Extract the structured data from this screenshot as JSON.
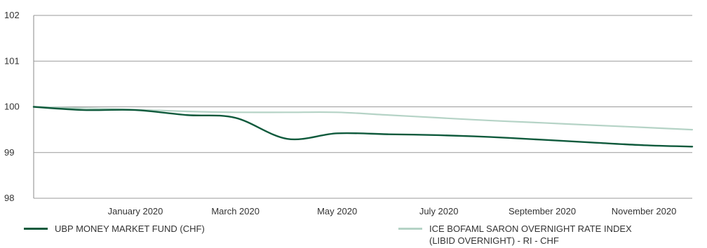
{
  "chart_data": {
    "type": "line",
    "title": "",
    "xlabel": "",
    "ylabel": "",
    "ylim": [
      98,
      102
    ],
    "yticks": [
      "102",
      "101",
      "100",
      "99",
      "98"
    ],
    "xticks": [
      {
        "label": "January 2020",
        "x": "2020-01"
      },
      {
        "label": "March 2020",
        "x": "2020-03"
      },
      {
        "label": "May 2020",
        "x": "2020-05"
      },
      {
        "label": "July 2020",
        "x": "2020-07"
      },
      {
        "label": "September 2020",
        "x": "2020-09"
      },
      {
        "label": "November 2020",
        "x": "2020-11"
      }
    ],
    "grid": "horizontal",
    "legend_position": "bottom",
    "x": [
      "2019-11",
      "2019-12",
      "2020-01",
      "2020-02",
      "2020-03",
      "2020-04",
      "2020-05",
      "2020-06",
      "2020-07",
      "2020-08",
      "2020-09",
      "2020-10",
      "2020-11"
    ],
    "series": [
      {
        "name": "UBP MONEY MARKET FUND (CHF)",
        "color": "#0f5a3c",
        "values": [
          100.0,
          99.93,
          99.93,
          99.82,
          99.76,
          99.3,
          99.42,
          99.4,
          99.38,
          99.34,
          99.28,
          99.22,
          99.16
        ]
      },
      {
        "name": "ICE BOFAML SARON OVERNIGHT RATE INDEX (LIBID OVERNIGHT) - RI - CHF",
        "name_line1": "ICE BOFAML SARON OVERNIGHT RATE INDEX",
        "name_line2": "(LIBID OVERNIGHT) - RI - CHF",
        "color": "#b5d3c6",
        "values": [
          100.0,
          99.97,
          99.94,
          99.9,
          99.88,
          99.88,
          99.88,
          99.82,
          99.76,
          99.7,
          99.65,
          99.6,
          99.55
        ]
      }
    ],
    "final_point": {
      "x": "2020-11-30",
      "fund": 99.13,
      "index": 99.5
    }
  }
}
